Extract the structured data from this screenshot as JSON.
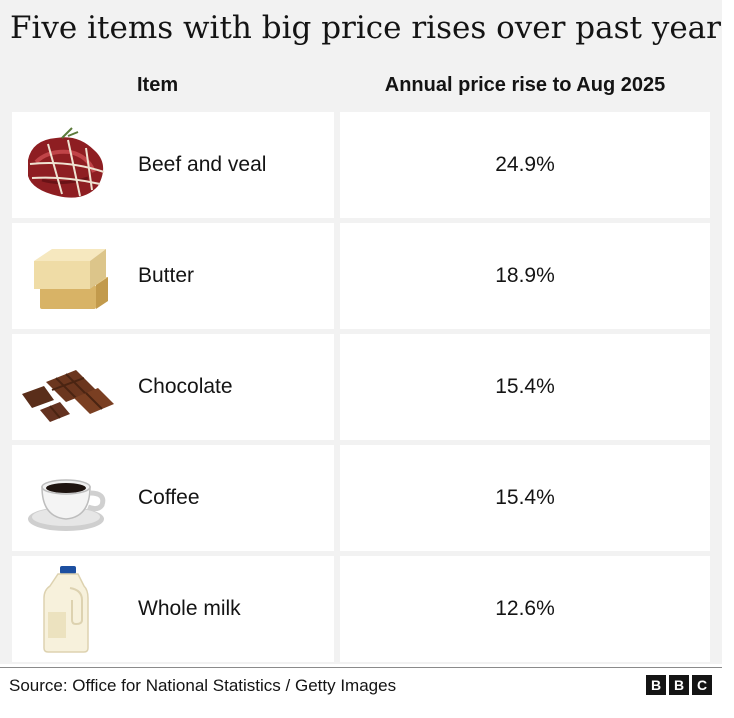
{
  "chart_data": {
    "type": "table",
    "title": "Five items with big price rises over past year",
    "columns": [
      "Item",
      "Annual price rise to Aug 2025"
    ],
    "rows": [
      {
        "item": "Beef and veal",
        "value": "24.9%",
        "icon": "beef-icon"
      },
      {
        "item": "Butter",
        "value": "18.9%",
        "icon": "butter-icon"
      },
      {
        "item": "Chocolate",
        "value": "15.4%",
        "icon": "chocolate-icon"
      },
      {
        "item": "Coffee",
        "value": "15.4%",
        "icon": "coffee-icon"
      },
      {
        "item": "Whole milk",
        "value": "12.6%",
        "icon": "milk-icon"
      }
    ],
    "values": [
      24.9,
      18.9,
      15.4,
      15.4,
      12.6
    ],
    "unit": "%"
  },
  "footer": {
    "source": "Source: Office for National Statistics / Getty Images",
    "logo": [
      "B",
      "B",
      "C"
    ]
  },
  "colors": {
    "background": "#f2f2f2",
    "cell": "#ffffff",
    "text": "#141414"
  }
}
